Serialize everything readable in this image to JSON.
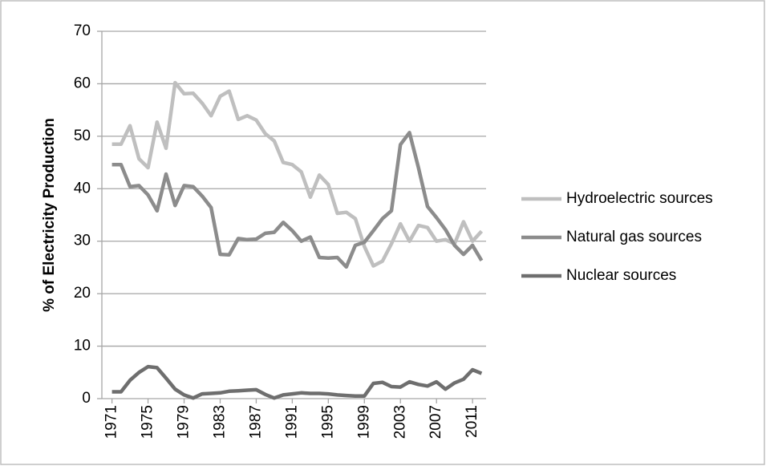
{
  "chart_data": {
    "type": "line",
    "y_label": "% of Electricity Production",
    "x": [
      1971,
      1972,
      1973,
      1974,
      1975,
      1976,
      1977,
      1978,
      1979,
      1980,
      1981,
      1982,
      1983,
      1984,
      1985,
      1986,
      1987,
      1988,
      1989,
      1990,
      1991,
      1992,
      1993,
      1994,
      1995,
      1996,
      1997,
      1998,
      1999,
      2000,
      2001,
      2002,
      2003,
      2004,
      2005,
      2006,
      2007,
      2008,
      2009,
      2010,
      2011,
      2012
    ],
    "series": [
      {
        "name": "Hydroelectric sources",
        "color": "#bfbfbf",
        "values": [
          48.5,
          48.5,
          52,
          45.7,
          44,
          52.7,
          47.7,
          60.2,
          58.1,
          58.2,
          56.3,
          53.9,
          57.6,
          58.6,
          53.2,
          53.9,
          53.1,
          50.5,
          49.1,
          45,
          44.6,
          43.2,
          38.4,
          42.6,
          40.8,
          35.3,
          35.5,
          34.3,
          29,
          25.3,
          26.2,
          29.5,
          33.3,
          30,
          33,
          32.6,
          30,
          30.3,
          29.5,
          33.7,
          30,
          31.9
        ]
      },
      {
        "name": "Natural gas sources",
        "color": "#8c8c8c",
        "values": [
          44.6,
          44.6,
          40.4,
          40.6,
          38.8,
          35.8,
          42.8,
          36.8,
          40.6,
          40.4,
          38.6,
          36.4,
          27.5,
          27.4,
          30.5,
          30.3,
          30.4,
          31.5,
          31.7,
          33.6,
          32,
          30,
          30.8,
          26.9,
          26.8,
          26.9,
          25.1,
          29.2,
          29.8,
          32,
          34.3,
          35.8,
          48.4,
          50.7,
          44,
          36.6,
          34.5,
          32.2,
          29.2,
          27.5,
          29.2,
          26.3
        ]
      },
      {
        "name": "Nuclear sources",
        "color": "#6e6e6e",
        "values": [
          1.3,
          1.3,
          3.5,
          5,
          6.1,
          5.9,
          3.9,
          1.8,
          0.7,
          0.1,
          0.9,
          1,
          1.1,
          1.4,
          1.5,
          1.6,
          1.7,
          0.8,
          0.1,
          0.7,
          0.9,
          1.1,
          1,
          1,
          0.9,
          0.7,
          0.6,
          0.5,
          0.5,
          2.9,
          3.1,
          2.3,
          2.2,
          3.2,
          2.7,
          2.4,
          3.2,
          1.8,
          3,
          3.7,
          5.5,
          4.8
        ]
      }
    ],
    "xlim": [
      1970.5,
      2012.5
    ],
    "xticks": [
      1971,
      1975,
      1979,
      1983,
      1987,
      1991,
      1995,
      1999,
      2003,
      2007,
      2011
    ],
    "ylim": [
      0,
      70
    ],
    "yticks": [
      0,
      10,
      20,
      30,
      40,
      50,
      60,
      70
    ],
    "grid": true,
    "legend": "right"
  }
}
